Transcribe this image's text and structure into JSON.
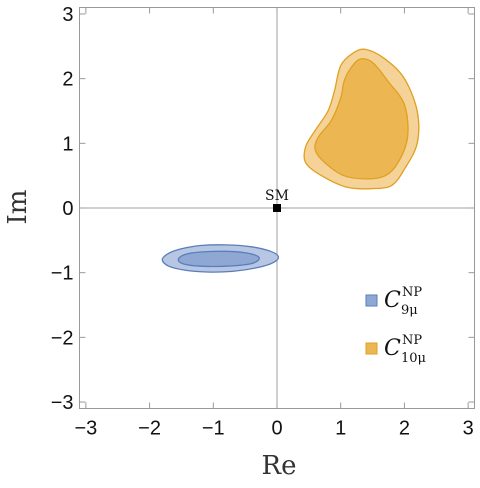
{
  "chart_data": {
    "type": "contour",
    "xlabel": "Re",
    "ylabel": "Im",
    "xlim": [
      -3.1,
      3.1
    ],
    "ylim": [
      -3.1,
      3.1
    ],
    "xticks": [
      -3,
      -2,
      -1,
      0,
      1,
      2,
      3
    ],
    "yticks": [
      -3,
      -2,
      -1,
      0,
      1,
      2,
      3
    ],
    "xtick_labels": [
      "−3",
      "−2",
      "−1",
      "0",
      "1",
      "2",
      "3"
    ],
    "ytick_labels": [
      "−3",
      "−2",
      "−1",
      "0",
      "1",
      "2",
      "3"
    ],
    "grid": false,
    "legend_position": "bottom-right",
    "annotations": [
      {
        "text": "SM",
        "x": 0,
        "y": 0
      }
    ],
    "series": [
      {
        "name": "C9μNP",
        "legend": {
          "base": "C",
          "sup": "NP",
          "sub": "9μ"
        },
        "color": "#5a7ebb",
        "regions": [
          {
            "level": "outer",
            "fill": "#b7c7e3",
            "stroke": "#5a7ebb",
            "points": [
              [
                -1.8,
                -0.8
              ],
              [
                -1.7,
                -0.7
              ],
              [
                -1.5,
                -0.63
              ],
              [
                -1.2,
                -0.58
              ],
              [
                -0.8,
                -0.57
              ],
              [
                -0.4,
                -0.6
              ],
              [
                -0.1,
                -0.67
              ],
              [
                0.02,
                -0.75
              ],
              [
                -0.05,
                -0.84
              ],
              [
                -0.3,
                -0.92
              ],
              [
                -0.7,
                -0.98
              ],
              [
                -1.1,
                -0.99
              ],
              [
                -1.45,
                -0.96
              ],
              [
                -1.7,
                -0.9
              ]
            ]
          },
          {
            "level": "inner",
            "fill": "#8fa8d3",
            "stroke": "#5a7ebb",
            "points": [
              [
                -1.55,
                -0.8
              ],
              [
                -1.45,
                -0.72
              ],
              [
                -1.2,
                -0.68
              ],
              [
                -0.8,
                -0.67
              ],
              [
                -0.45,
                -0.7
              ],
              [
                -0.28,
                -0.77
              ],
              [
                -0.4,
                -0.86
              ],
              [
                -0.8,
                -0.9
              ],
              [
                -1.2,
                -0.9
              ],
              [
                -1.45,
                -0.87
              ]
            ]
          }
        ]
      },
      {
        "name": "C10μNP",
        "legend": {
          "base": "C",
          "sup": "NP",
          "sub": "10μ"
        },
        "color": "#e0a020",
        "regions": [
          {
            "level": "outer",
            "fill": "#f5d398",
            "stroke": "#e0a020",
            "points": [
              [
                1.2,
                2.4
              ],
              [
                1.4,
                2.45
              ],
              [
                1.7,
                2.3
              ],
              [
                2.0,
                2.0
              ],
              [
                2.2,
                1.5
              ],
              [
                2.2,
                1.0
              ],
              [
                2.0,
                0.6
              ],
              [
                1.8,
                0.35
              ],
              [
                1.5,
                0.3
              ],
              [
                1.1,
                0.32
              ],
              [
                0.7,
                0.5
              ],
              [
                0.45,
                0.7
              ],
              [
                0.45,
                0.95
              ],
              [
                0.6,
                1.2
              ],
              [
                0.8,
                1.5
              ],
              [
                0.9,
                1.8
              ],
              [
                1.0,
                2.2
              ]
            ]
          },
          {
            "level": "inner",
            "fill": "#ecb652",
            "stroke": "#e0a020",
            "points": [
              [
                1.15,
                2.15
              ],
              [
                1.3,
                2.3
              ],
              [
                1.5,
                2.25
              ],
              [
                1.75,
                1.95
              ],
              [
                2.0,
                1.6
              ],
              [
                2.05,
                1.1
              ],
              [
                1.9,
                0.7
              ],
              [
                1.7,
                0.5
              ],
              [
                1.4,
                0.45
              ],
              [
                1.05,
                0.5
              ],
              [
                0.75,
                0.7
              ],
              [
                0.6,
                0.9
              ],
              [
                0.65,
                1.1
              ],
              [
                0.85,
                1.35
              ],
              [
                1.0,
                1.7
              ],
              [
                1.05,
                1.95
              ]
            ]
          }
        ]
      }
    ],
    "points": [
      {
        "label": "SM",
        "x": 0,
        "y": 0
      }
    ]
  }
}
